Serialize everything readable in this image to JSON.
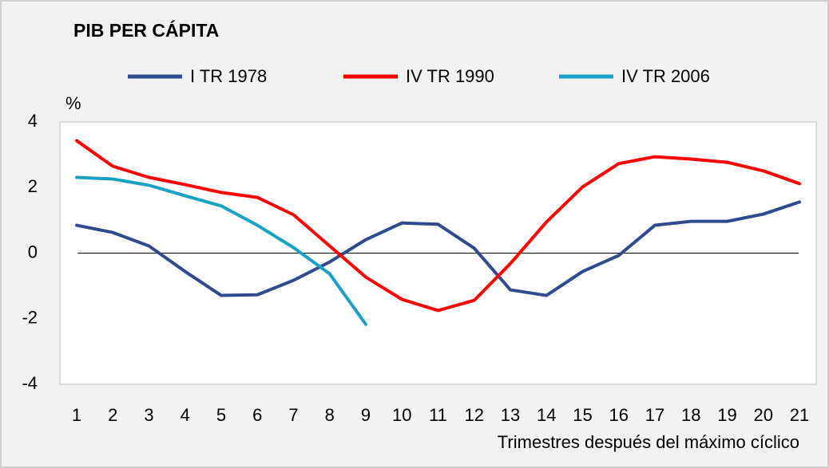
{
  "chart_data": {
    "type": "line",
    "title": "PIB PER CÁPITA",
    "y_label": "%",
    "x_label": "Trimestres después del máximo cíclico",
    "categories": [
      "1",
      "2",
      "3",
      "4",
      "5",
      "6",
      "7",
      "8",
      "9",
      "10",
      "11",
      "12",
      "13",
      "14",
      "15",
      "16",
      "17",
      "18",
      "19",
      "20",
      "21"
    ],
    "series": [
      {
        "name": "I TR 1978",
        "color": "#2f4b8e",
        "values": [
          0.85,
          0.63,
          0.22,
          -0.56,
          -1.29,
          -1.27,
          -0.83,
          -0.27,
          0.41,
          0.92,
          0.88,
          0.15,
          -1.12,
          -1.29,
          -0.56,
          -0.07,
          0.85,
          0.97,
          0.97,
          1.19,
          1.56
        ]
      },
      {
        "name": "IV TR 1990",
        "color": "#ff0000",
        "values": [
          3.43,
          2.65,
          2.31,
          2.09,
          1.85,
          1.7,
          1.17,
          0.22,
          -0.73,
          -1.41,
          -1.75,
          -1.44,
          -0.32,
          0.95,
          2.02,
          2.73,
          2.94,
          2.87,
          2.77,
          2.51,
          2.12
        ]
      },
      {
        "name": "IV TR 2006",
        "color": "#17a2c4",
        "values": [
          2.31,
          2.26,
          2.07,
          1.75,
          1.44,
          0.85,
          0.17,
          -0.63,
          -2.17,
          null,
          null,
          null,
          null,
          null,
          null,
          null,
          null,
          null,
          null,
          null,
          null
        ]
      }
    ],
    "ylim": [
      -4,
      4
    ],
    "yticks": [
      -4,
      -2,
      0,
      2,
      4
    ],
    "legend": "top",
    "grid": false
  }
}
